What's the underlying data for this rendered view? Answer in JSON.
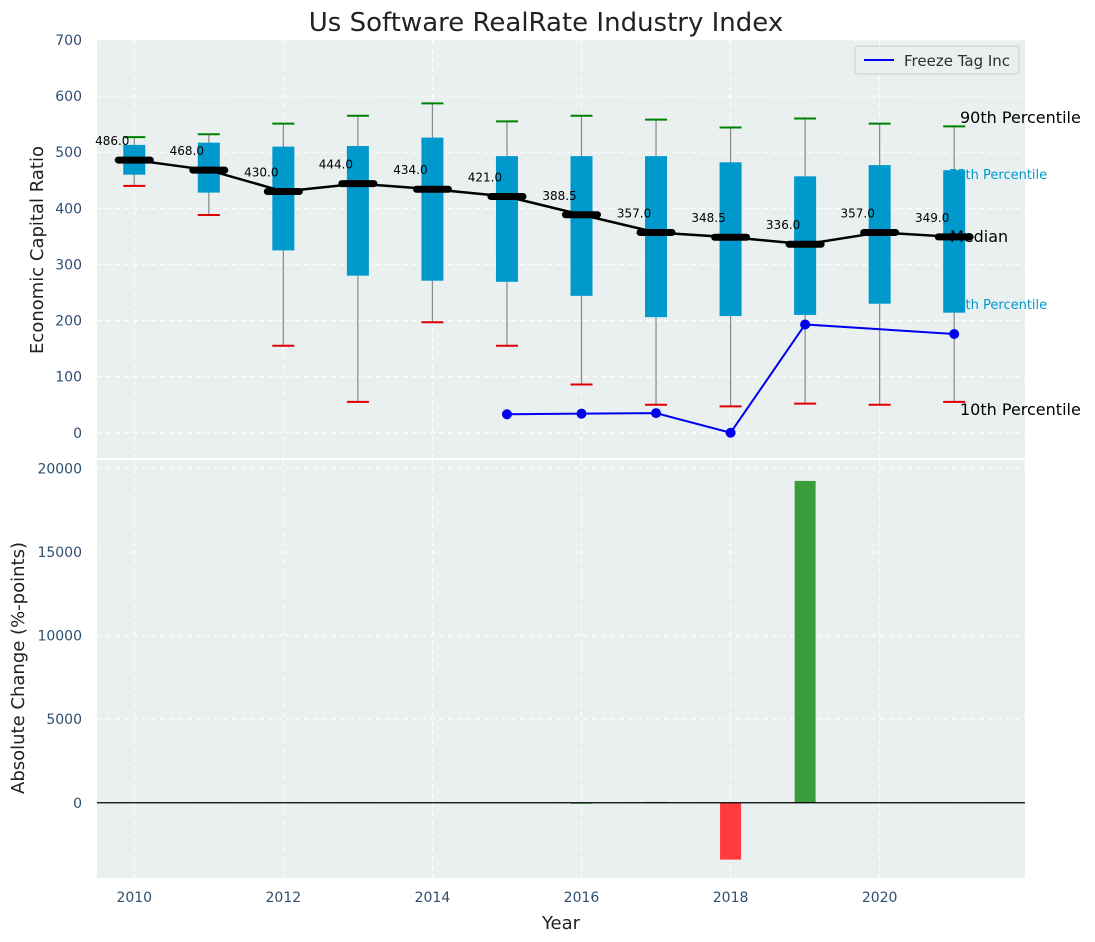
{
  "title": "Us Software RealRate Industry Index",
  "colors": {
    "background": "#eaeff0",
    "box": "#0099cc",
    "median_line": "#000000",
    "whisker_top": "#008000",
    "whisker_bottom": "#dd0000",
    "company_line": "#0000ee",
    "positive_bar": "#3a9c3a",
    "negative_bar": "#ff3b3b",
    "grid": "#ffffff"
  },
  "legend": {
    "position": "top-right",
    "entries": [
      "Freeze Tag Inc"
    ]
  },
  "percentile_labels": {
    "p90": "90th Percentile",
    "p75": "75th Percentile",
    "median": "Median",
    "p25": "25th Percentile",
    "p10": "10th Percentile"
  },
  "chart_data": [
    {
      "type": "box",
      "ylabel": "Economic Capital Ratio",
      "ylim": [
        -45,
        700
      ],
      "yticks": [
        0,
        100,
        200,
        300,
        400,
        500,
        600,
        700
      ],
      "grid": true,
      "x": [
        2010,
        2011,
        2012,
        2013,
        2014,
        2015,
        2016,
        2017,
        2018,
        2019,
        2020,
        2021
      ],
      "p10": [
        440,
        388,
        155,
        55,
        197,
        155,
        86,
        50,
        47,
        52,
        50,
        55
      ],
      "p25": [
        460,
        428,
        325,
        280,
        271,
        269,
        244,
        206,
        208,
        210,
        230,
        214
      ],
      "median": [
        486.0,
        468.0,
        430.0,
        444.0,
        434.0,
        421.0,
        388.5,
        357.0,
        348.5,
        336.0,
        357.0,
        349.0
      ],
      "median_labels": [
        "486.0",
        "468.0",
        "430.0",
        "444.0",
        "434.0",
        "421.0",
        "388.5",
        "357.0",
        "348.5",
        "336.0",
        "357.0",
        "349.0"
      ],
      "p75": [
        513,
        517,
        510,
        511,
        526,
        493,
        493,
        493,
        482,
        457,
        477,
        468
      ],
      "p90": [
        527,
        532,
        551,
        565,
        587,
        555,
        565,
        558,
        544,
        560,
        551,
        546
      ],
      "series": [
        {
          "name": "Freeze Tag Inc",
          "x": [
            2015,
            2016,
            2017,
            2018,
            2019,
            2021
          ],
          "values": [
            33,
            34,
            35,
            0,
            193,
            176
          ]
        }
      ]
    },
    {
      "type": "bar",
      "xlabel": "Year",
      "ylabel": "Absolute Change (%-points)",
      "ylim": [
        -4500,
        20500
      ],
      "yticks": [
        0,
        5000,
        10000,
        15000,
        20000
      ],
      "xticks": [
        2010,
        2012,
        2014,
        2016,
        2018,
        2020
      ],
      "xlim": [
        2009.5,
        2021.95
      ],
      "grid": true,
      "x": [
        2016,
        2017,
        2018,
        2019
      ],
      "values": [
        1,
        50,
        -3400,
        19250
      ]
    }
  ]
}
